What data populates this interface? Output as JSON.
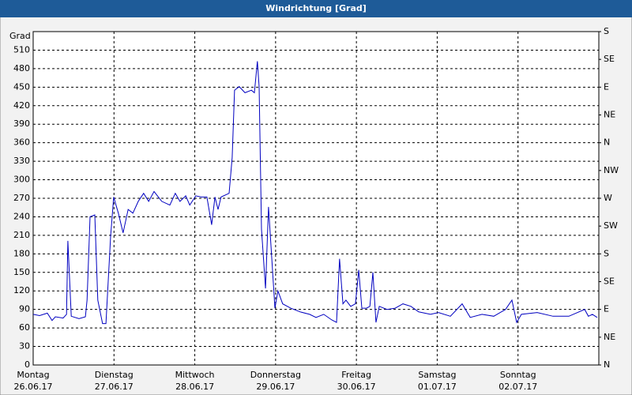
{
  "window_title": "Windrichtung [Grad]",
  "chart_data": {
    "type": "line",
    "ylabel": "Grad",
    "xlim": [
      0,
      168
    ],
    "xticks": [
      {
        "value": 0,
        "label": "Montag"
      },
      {
        "value": 24,
        "label": "Dienstag"
      },
      {
        "value": 48,
        "label": "Mittwoch"
      },
      {
        "value": 72,
        "label": "Donnerstag"
      },
      {
        "value": 96,
        "label": "Freitag"
      },
      {
        "value": 120,
        "label": "Samstag"
      },
      {
        "value": 144,
        "label": "Sonntag"
      }
    ],
    "xtick_dates": [
      "26.06.17",
      "27.06.17",
      "28.06.17",
      "29.06.17",
      "30.06.17",
      "01.07.17",
      "02.07.17"
    ],
    "ylim": [
      0,
      540
    ],
    "yticks": [
      0,
      30,
      60,
      90,
      120,
      150,
      180,
      210,
      240,
      270,
      300,
      330,
      360,
      390,
      420,
      450,
      480,
      510
    ],
    "y2lim": [
      0,
      540
    ],
    "y2ticks": [
      {
        "value": 0,
        "label": "N"
      },
      {
        "value": 45,
        "label": "NE"
      },
      {
        "value": 90,
        "label": "E"
      },
      {
        "value": 135,
        "label": "SE"
      },
      {
        "value": 180,
        "label": "S"
      },
      {
        "value": 225,
        "label": "SW"
      },
      {
        "value": 270,
        "label": "W"
      },
      {
        "value": 315,
        "label": "NW"
      },
      {
        "value": 360,
        "label": "N"
      },
      {
        "value": 405,
        "label": "NE"
      },
      {
        "value": 450,
        "label": "E"
      },
      {
        "value": 495,
        "label": "SE"
      },
      {
        "value": 540,
        "label": "S"
      }
    ],
    "grid": true,
    "series": [
      {
        "color": "#0000c0",
        "x": [
          0,
          1.9,
          4.2,
          5.6,
          6.6,
          8.9,
          9.9,
          10.3,
          11.3,
          13.6,
          15.5,
          16,
          16.9,
          18.3,
          19.2,
          20.6,
          21.6,
          23,
          23.9,
          25.3,
          26.7,
          28.2,
          29.6,
          31.2,
          32.8,
          34.3,
          35.9,
          38.2,
          40.6,
          42.2,
          43.6,
          45.3,
          46.5,
          48.3,
          50,
          51.6,
          53,
          54,
          54.9,
          55.8,
          58.2,
          59.1,
          59.8,
          61.2,
          62.9,
          64.8,
          65.7,
          66.6,
          67.1,
          67.8,
          69,
          69.9,
          70.9,
          71.8,
          72.7,
          74.1,
          76.5,
          79.3,
          82.1,
          84,
          86.3,
          88.7,
          90.1,
          91,
          92,
          92.9,
          94.3,
          95.7,
          96.7,
          97.6,
          99,
          100,
          100.9,
          101.8,
          102.8,
          105.1,
          107.5,
          109.8,
          112.2,
          114.5,
          118,
          120.4,
          123.9,
          127.4,
          129.8,
          133.3,
          136.8,
          140.3,
          142.2,
          143.6,
          145,
          149.7,
          154.4,
          159.1,
          163.8,
          164.9,
          166.1,
          167.5
        ],
        "values": [
          82,
          80,
          84,
          72,
          78,
          76,
          82,
          201,
          79,
          75,
          78,
          105,
          240,
          243,
          105,
          67,
          67,
          208,
          272,
          246,
          214,
          252,
          246,
          265,
          278,
          265,
          281,
          265,
          259,
          278,
          265,
          274,
          259,
          274,
          272,
          272,
          227,
          272,
          252,
          272,
          278,
          336,
          445,
          451,
          441,
          445,
          441,
          492,
          451,
          220,
          124,
          256,
          169,
          92,
          120,
          99,
          92,
          86,
          82,
          77,
          82,
          73,
          69,
          172,
          99,
          105,
          95,
          99,
          154,
          92,
          92,
          95,
          150,
          69,
          95,
          90,
          92,
          99,
          95,
          86,
          82,
          85,
          79,
          99,
          77,
          82,
          79,
          90,
          105,
          69,
          82,
          85,
          79,
          79,
          90,
          79,
          82,
          77
        ]
      }
    ]
  }
}
